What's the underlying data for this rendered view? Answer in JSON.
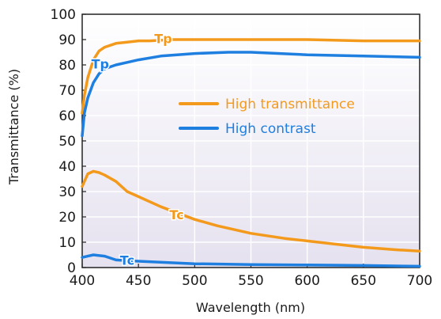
{
  "chart_data": {
    "type": "line",
    "title": "",
    "xlabel": "Wavelength (nm)",
    "ylabel": "Transmittance (%)",
    "xlim": [
      400,
      700
    ],
    "ylim": [
      0,
      100
    ],
    "xticks": [
      400,
      450,
      500,
      550,
      600,
      650,
      700
    ],
    "yticks": [
      0,
      10,
      20,
      30,
      40,
      50,
      60,
      70,
      80,
      90,
      100
    ],
    "grid": true,
    "legend_position": "center-right",
    "background_gradient": [
      "#ffffff",
      "#e5e1ef"
    ],
    "series": [
      {
        "name": "High transmittance",
        "color": "#f39a1d",
        "curves": [
          {
            "label": "Tp",
            "x": [
              400,
              402,
              405,
              410,
              415,
              420,
              430,
              440,
              450,
              460,
              480,
              500,
              520,
              550,
              600,
              650,
              700
            ],
            "y": [
              61,
              68,
              75,
              82,
              85.5,
              87,
              88.5,
              89,
              89.5,
              89.5,
              90,
              90,
              90,
              90,
              90,
              89.5,
              89.5
            ]
          },
          {
            "label": "Tc",
            "x": [
              400,
              405,
              410,
              415,
              420,
              430,
              440,
              450,
              470,
              500,
              520,
              550,
              580,
              600,
              620,
              650,
              680,
              700
            ],
            "y": [
              32,
              37,
              38,
              37.5,
              36.5,
              34,
              30,
              28,
              24,
              19,
              16.5,
              13.5,
              11.5,
              10.5,
              9.5,
              8,
              7,
              6.5
            ]
          }
        ]
      },
      {
        "name": "High contrast",
        "color": "#1e7fe0",
        "curves": [
          {
            "label": "Tp",
            "x": [
              400,
              402,
              405,
              410,
              415,
              420,
              430,
              440,
              450,
              470,
              500,
              530,
              550,
              600,
              650,
              700
            ],
            "y": [
              52,
              61,
              67,
              73,
              76.5,
              78.5,
              80,
              81,
              82,
              83.5,
              84.5,
              85,
              85,
              84,
              83.5,
              83
            ]
          },
          {
            "label": "Tc",
            "x": [
              400,
              405,
              410,
              420,
              430,
              450,
              500,
              550,
              600,
              650,
              700
            ],
            "y": [
              4,
              4.5,
              5,
              4.5,
              3,
              2.5,
              1.5,
              1.2,
              1,
              0.8,
              0.5
            ]
          }
        ]
      }
    ],
    "annotations": [
      {
        "text": "Tp",
        "x": 472,
        "y": 90.5,
        "color": "#f39a1d"
      },
      {
        "text": "Tp",
        "x": 416,
        "y": 80.5,
        "color": "#1e7fe0"
      },
      {
        "text": "Tc",
        "x": 484,
        "y": 21,
        "color": "#f39a1d"
      },
      {
        "text": "Tc",
        "x": 440,
        "y": 3,
        "color": "#1e7fe0"
      }
    ]
  }
}
